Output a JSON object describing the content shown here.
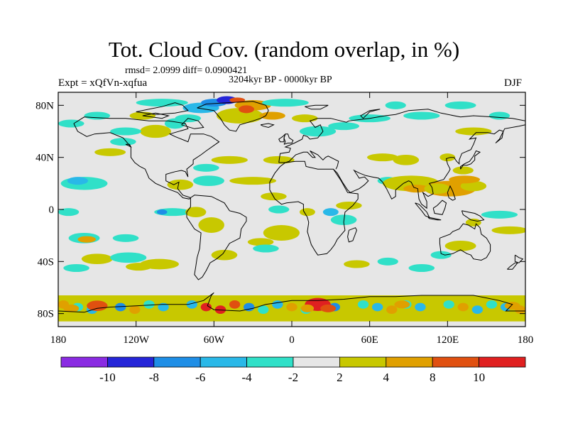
{
  "title": "Tot. Cloud Cov. (random overlap, in %)",
  "stats_line": "rmsd= 2.0999 diff= 0.0900421",
  "experiment": "Expt = xQfVn-xqfua",
  "period": "3204kyr BP - 0000kyr BP",
  "season": "DJF",
  "map": {
    "projection": "cylindrical-equidistant",
    "lon_range": [
      -180,
      180
    ],
    "lat_range": [
      -90,
      90
    ],
    "lat_ticks": [
      "80N",
      "40N",
      "0",
      "40S",
      "80S"
    ],
    "lat_values": [
      80,
      40,
      0,
      -40,
      -80
    ],
    "lon_ticks": [
      "180",
      "120W",
      "60W",
      "0",
      "60E",
      "120E",
      "180"
    ],
    "lon_values": [
      -180,
      -120,
      -60,
      0,
      60,
      120,
      180
    ],
    "background_color": "#e6e6e6",
    "coastline_color": "#000000"
  },
  "colorbar": {
    "bins": [
      {
        "range": "< -10",
        "color": "#8a2be2"
      },
      {
        "range": "-10 to -8",
        "color": "#2525d8"
      },
      {
        "range": "-8 to -6",
        "color": "#1e8ee6"
      },
      {
        "range": "-6 to -4",
        "color": "#29b8e8"
      },
      {
        "range": "-4 to -2",
        "color": "#30e0c8"
      },
      {
        "range": "-2 to 2",
        "color": "#e6e6e6"
      },
      {
        "range": "2 to 4",
        "color": "#c8c800"
      },
      {
        "range": "4 to 8",
        "color": "#e0a000"
      },
      {
        "range": "8 to 10",
        "color": "#e05010"
      },
      {
        "range": "> 10",
        "color": "#e02020"
      }
    ],
    "labels": [
      "-10",
      "-8",
      "-6",
      "-4",
      "-2",
      "2",
      "4",
      "8",
      "10"
    ]
  }
}
